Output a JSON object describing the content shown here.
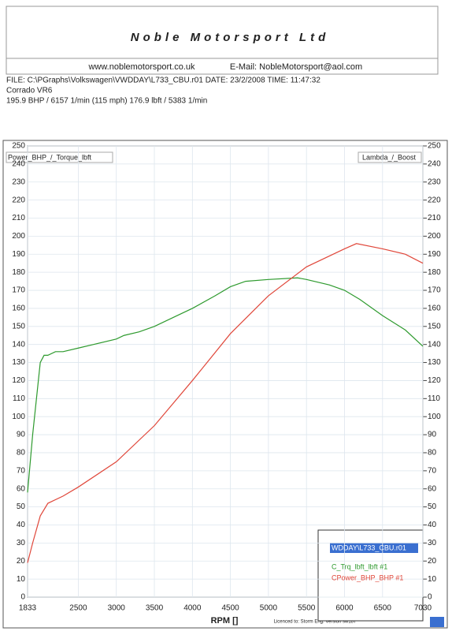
{
  "header": {
    "title": "Noble Motorsport Ltd",
    "website": "www.noblemotorsport.co.uk",
    "email": "E-Mail: NobleMotorsport@aol.com",
    "file": "FILE: C:\\PGraphs\\Volkswagen\\VWDDAY\\L733_CBU.r01  DATE: 23/2/2008  TIME: 11:47:32",
    "car": "Corrado VR6",
    "summary": "195.9 BHP / 6157 1/min (115 mph)     176.9 lbft / 5383 1/min"
  },
  "chart_data": {
    "type": "line",
    "y_label": "Power_BHP_/_Torque_lbft",
    "y2_label": "Lambda_/_Boost",
    "x_label": "RPM []",
    "footer": "Licenced to: Storm Eng.   Version sw187",
    "xlim": [
      1833,
      7030
    ],
    "xticks": [
      1833,
      2500,
      3000,
      3500,
      4000,
      4500,
      5000,
      5500,
      6000,
      6500,
      7030
    ],
    "ylim": [
      0,
      250
    ],
    "yticks": [
      0,
      10,
      20,
      30,
      40,
      50,
      60,
      70,
      80,
      90,
      100,
      110,
      120,
      130,
      140,
      150,
      160,
      170,
      180,
      190,
      200,
      210,
      220,
      230,
      240,
      250
    ],
    "y2lim": [
      0,
      250
    ],
    "y2ticks": [
      0,
      10,
      20,
      30,
      40,
      50,
      60,
      70,
      80,
      90,
      100,
      110,
      120,
      130,
      140,
      150,
      160,
      170,
      180,
      190,
      200,
      210,
      220,
      230,
      240,
      250
    ],
    "grid": true,
    "legend_title": "WDDAY\\L733_CBU.r01",
    "series": [
      {
        "name": "C_Trq_lbft_lbft #1",
        "color": "#2e9a2e",
        "x": [
          1833,
          1900,
          2000,
          2050,
          2100,
          2200,
          2300,
          2500,
          2700,
          3000,
          3100,
          3300,
          3500,
          3800,
          4000,
          4300,
          4500,
          4700,
          5000,
          5383,
          5500,
          5800,
          6000,
          6200,
          6500,
          6800,
          7030
        ],
        "values": [
          58,
          90,
          130,
          134,
          134,
          136,
          136,
          138,
          140,
          143,
          145,
          147,
          150,
          156,
          160,
          167,
          172,
          175,
          176,
          176.9,
          176,
          173,
          170,
          165,
          156,
          148,
          139
        ]
      },
      {
        "name": "CPower_BHP_BHP #1",
        "color": "#e0473a",
        "x": [
          1833,
          1900,
          2000,
          2100,
          2300,
          2500,
          3000,
          3500,
          4000,
          4500,
          5000,
          5500,
          6000,
          6157,
          6500,
          6800,
          7030
        ],
        "values": [
          19,
          30,
          45,
          52,
          56,
          61,
          75,
          95,
          120,
          146,
          167,
          183,
          193,
          195.9,
          193,
          190,
          185
        ]
      }
    ]
  }
}
